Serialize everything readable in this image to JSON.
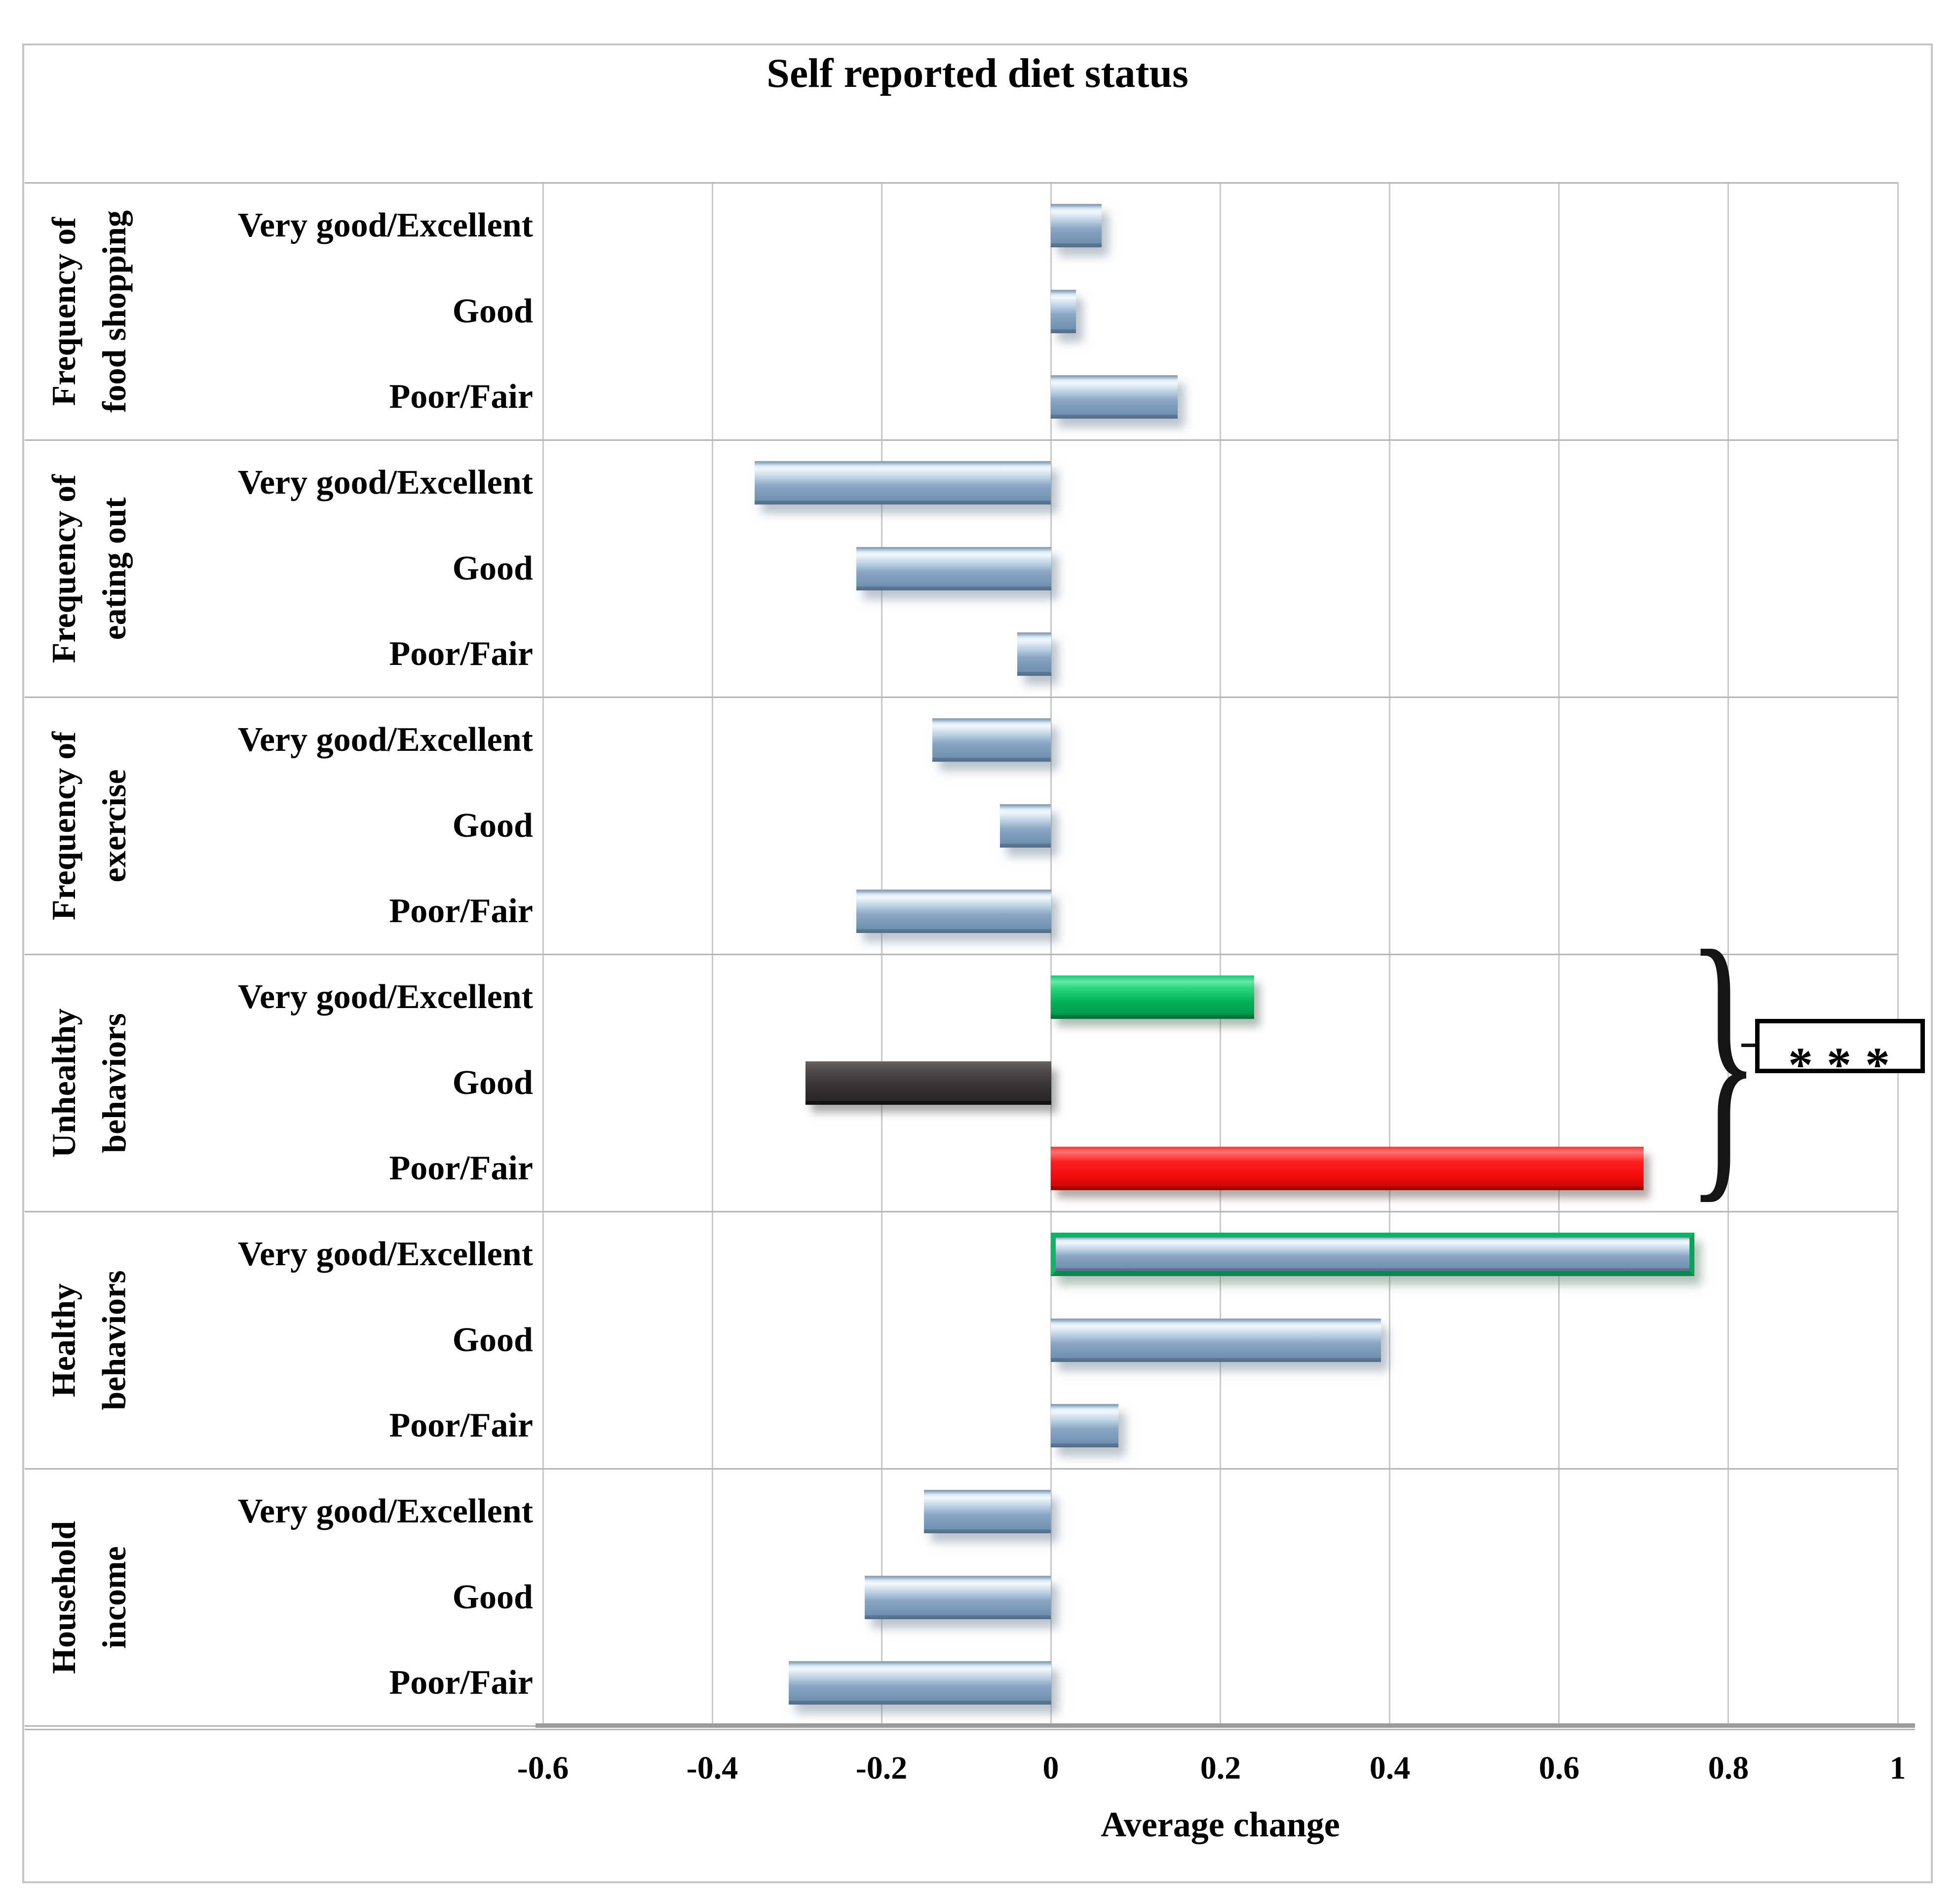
{
  "chart_data": {
    "type": "bar",
    "orientation": "horizontal",
    "title": "Self reported diet status",
    "xlabel": "Average change",
    "xlim": [
      -0.6,
      1.0
    ],
    "xticks": [
      -0.6,
      -0.4,
      -0.2,
      0,
      0.2,
      0.4,
      0.6,
      0.8,
      1
    ],
    "xtick_labels": [
      "-0.6",
      "-0.4",
      "-0.2",
      "0",
      "0.2",
      "0.4",
      "0.6",
      "0.8",
      "1"
    ],
    "grid": "vertical-gridlines-on",
    "legend": "none",
    "categories": [
      "Very good/Excellent",
      "Good",
      "Poor/Fair"
    ],
    "groups": [
      {
        "label": "Frequency of food shopping",
        "label_lines": [
          "Frequency of",
          "food shopping"
        ],
        "values": [
          0.06,
          0.03,
          0.15
        ],
        "bar_colors": [
          "light-blue",
          "light-blue",
          "light-blue"
        ]
      },
      {
        "label": "Frequency of eating out",
        "label_lines": [
          "Frequency of",
          "eating out"
        ],
        "values": [
          -0.35,
          -0.23,
          -0.04
        ],
        "bar_colors": [
          "light-blue",
          "light-blue",
          "light-blue"
        ]
      },
      {
        "label": "Frequency of exercise",
        "label_lines": [
          "Frequency of",
          "exercise"
        ],
        "values": [
          -0.14,
          -0.06,
          -0.23
        ],
        "bar_colors": [
          "light-blue",
          "light-blue",
          "light-blue"
        ]
      },
      {
        "label": "Unhealthy behaviors",
        "label_lines": [
          "Unhealthy",
          "behaviors"
        ],
        "values": [
          0.24,
          -0.29,
          0.7
        ],
        "bar_colors": [
          "green",
          "dark-gray",
          "red"
        ]
      },
      {
        "label": "Healthy behaviors",
        "label_lines": [
          "Healthy",
          "behaviors"
        ],
        "values": [
          0.76,
          0.39,
          0.08
        ],
        "bar_colors": [
          "light-blue-green-border",
          "light-blue",
          "light-blue"
        ]
      },
      {
        "label": "Household income",
        "label_lines": [
          "Household",
          "income"
        ],
        "values": [
          -0.15,
          -0.22,
          -0.31
        ],
        "bar_colors": [
          "light-blue",
          "light-blue",
          "light-blue"
        ]
      }
    ],
    "annotation": {
      "text": "***",
      "brace": "}",
      "applies_to_group": "Unhealthy behaviors"
    },
    "colors": {
      "light_blue_bar": "#8FADCB",
      "green_bar": "#00B158",
      "dark_gray_bar": "#3A3536",
      "red_bar": "#F00E0E",
      "green_border": "#0CB469",
      "gridline": "#C9C9C9",
      "separator": "#B5B5B5",
      "axis_line": "#9B9B9B",
      "text": "#000000"
    }
  }
}
